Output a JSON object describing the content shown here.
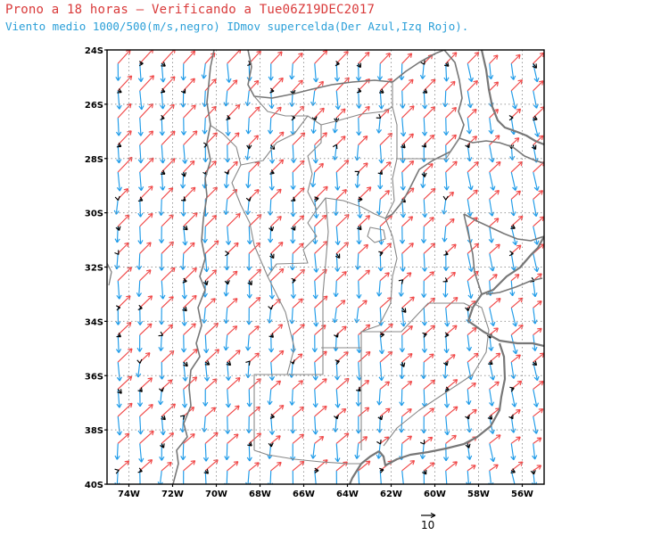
{
  "title_line1": "Prono a 18 horas – Verificando a Tue06Z19DEC2017",
  "title_line2": "Viento medio 1000/500(m/s,negro) IDmov supercelda(Der Azul,Izq Rojo).",
  "lat_labels": [
    "24S",
    "26S",
    "28S",
    "30S",
    "32S",
    "34S",
    "36S",
    "38S",
    "40S"
  ],
  "lon_labels": [
    "74W",
    "72W",
    "70W",
    "68W",
    "66W",
    "64W",
    "62W",
    "60W",
    "58W",
    "56W"
  ],
  "reference_vector_label": "10",
  "colors": {
    "mean_wind": "#000000",
    "right_mover": "#1e9be8",
    "left_mover": "#f04848",
    "borders": "#7a7a7a",
    "grid": "#9a9a9a"
  },
  "map_data": {
    "lat_range": [
      -40,
      -24
    ],
    "lon_range": [
      -75,
      -55
    ],
    "grid_step_deg": 2,
    "vector_grid_step_deg": 1,
    "reference_vector_ms": 10
  }
}
